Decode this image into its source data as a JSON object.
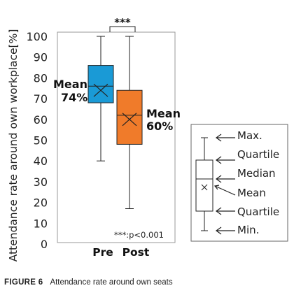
{
  "chart_data": {
    "type": "box",
    "ylabel": "Attendance rate around own workplace[%]",
    "ylim": [
      0,
      100
    ],
    "yticks": [
      0,
      10,
      20,
      30,
      40,
      50,
      60,
      70,
      80,
      90,
      100
    ],
    "categories": [
      "Pre",
      "Post"
    ],
    "boxes": [
      {
        "category": "Pre",
        "min": 40,
        "q1": 68,
        "median": 76,
        "q3": 86,
        "max": 100,
        "mean": 74,
        "color": "#1a9ad6",
        "mean_label_line1": "Mean",
        "mean_label_line2": "74%"
      },
      {
        "category": "Post",
        "min": 17,
        "q1": 48,
        "median": 62,
        "q3": 74,
        "max": 100,
        "mean": 60,
        "color": "#f07b2a",
        "mean_label_line1": "Mean",
        "mean_label_line2": "60%"
      }
    ],
    "significance_marker": "***",
    "significance_note": "***:p<0.001",
    "legend": {
      "max": "Max.",
      "upper_quartile": "Quartile",
      "median": "Median",
      "mean": "Mean",
      "lower_quartile": "Quartile",
      "min": "Min."
    }
  },
  "caption": {
    "label": "FIGURE 6",
    "text": "Attendance rate around own seats"
  }
}
